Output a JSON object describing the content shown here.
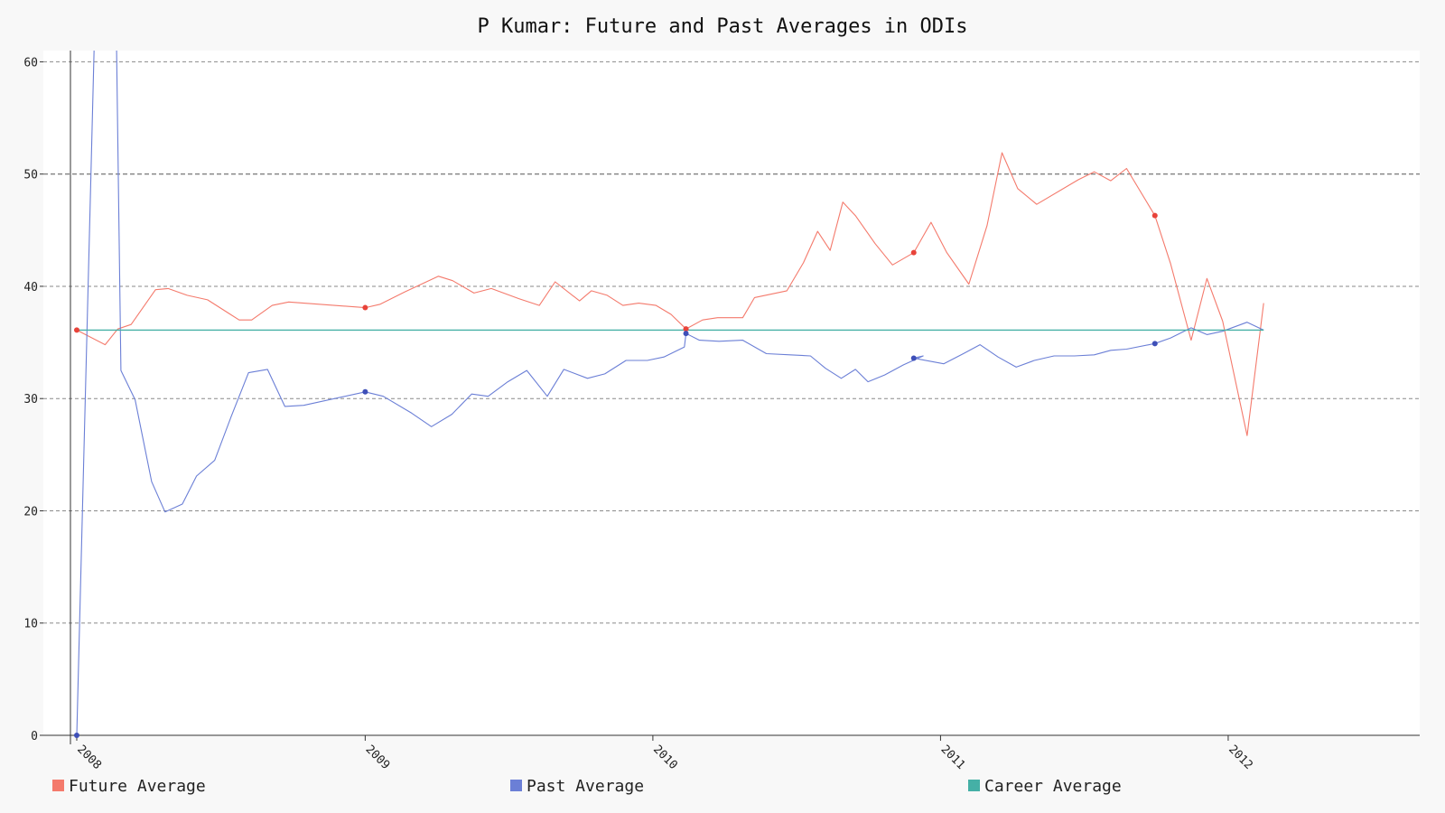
{
  "chart_data": {
    "type": "line",
    "title": "P Kumar: Future and Past Averages in ODIs",
    "xlabel": "",
    "ylabel": "",
    "ylim": [
      0,
      61
    ],
    "yticks": [
      0,
      10,
      20,
      30,
      40,
      50,
      60
    ],
    "xlim": [
      "2007-12-24",
      "2012-08-31"
    ],
    "xticks": [
      {
        "label": "2008",
        "date": "2008-01-01"
      },
      {
        "label": "2009",
        "date": "2009-01-01"
      },
      {
        "label": "2010",
        "date": "2010-01-01"
      },
      {
        "label": "2011",
        "date": "2011-01-01"
      },
      {
        "label": "2012",
        "date": "2012-01-01"
      }
    ],
    "grid": true,
    "legend_position": "bottom",
    "series": [
      {
        "name": "Future Average",
        "color": "#f47a6c",
        "marker_color": "#e8433a",
        "points": [
          [
            "2008-01-01",
            36.1
          ],
          [
            "2008-02-06",
            34.8
          ],
          [
            "2008-02-22",
            36.2
          ],
          [
            "2008-03-10",
            36.6
          ],
          [
            "2008-04-10",
            39.7
          ],
          [
            "2008-04-26",
            39.8
          ],
          [
            "2008-05-20",
            39.2
          ],
          [
            "2008-06-15",
            38.8
          ],
          [
            "2008-07-25",
            37.0
          ],
          [
            "2008-08-10",
            37.0
          ],
          [
            "2008-09-05",
            38.3
          ],
          [
            "2008-09-26",
            38.6
          ],
          [
            "2009-01-01",
            38.1
          ],
          [
            "2009-01-20",
            38.4
          ],
          [
            "2009-02-20",
            39.5
          ],
          [
            "2009-04-04",
            40.9
          ],
          [
            "2009-04-22",
            40.5
          ],
          [
            "2009-05-19",
            39.4
          ],
          [
            "2009-06-10",
            39.8
          ],
          [
            "2009-07-15",
            38.9
          ],
          [
            "2009-08-10",
            38.3
          ],
          [
            "2009-08-30",
            40.4
          ],
          [
            "2009-09-30",
            38.7
          ],
          [
            "2009-10-15",
            39.6
          ],
          [
            "2009-11-04",
            39.2
          ],
          [
            "2009-11-24",
            38.3
          ],
          [
            "2009-12-14",
            38.5
          ],
          [
            "2010-01-05",
            38.3
          ],
          [
            "2010-01-24",
            37.5
          ],
          [
            "2010-02-12",
            36.2
          ],
          [
            "2010-03-05",
            37.0
          ],
          [
            "2010-03-24",
            37.2
          ],
          [
            "2010-04-25",
            37.2
          ],
          [
            "2010-05-10",
            39.0
          ],
          [
            "2010-06-20",
            39.6
          ],
          [
            "2010-07-11",
            42.1
          ],
          [
            "2010-07-29",
            44.9
          ],
          [
            "2010-08-14",
            43.2
          ],
          [
            "2010-08-30",
            47.5
          ],
          [
            "2010-09-15",
            46.3
          ],
          [
            "2010-10-10",
            43.8
          ],
          [
            "2010-11-01",
            41.9
          ],
          [
            "2010-11-28",
            43.0
          ],
          [
            "2010-12-20",
            45.7
          ],
          [
            "2011-01-09",
            43.0
          ],
          [
            "2011-02-06",
            40.2
          ],
          [
            "2011-03-01",
            45.4
          ],
          [
            "2011-03-20",
            51.9
          ],
          [
            "2011-04-09",
            48.7
          ],
          [
            "2011-05-03",
            47.3
          ],
          [
            "2011-06-25",
            49.5
          ],
          [
            "2011-07-15",
            50.2
          ],
          [
            "2011-08-05",
            49.4
          ],
          [
            "2011-08-25",
            50.5
          ],
          [
            "2011-09-30",
            46.3
          ],
          [
            "2011-10-20",
            42.0
          ],
          [
            "2011-11-15",
            35.2
          ],
          [
            "2011-12-05",
            40.7
          ],
          [
            "2011-12-25",
            36.9
          ],
          [
            "2012-01-25",
            26.7
          ],
          [
            "2012-02-15",
            38.5
          ]
        ],
        "markers": [
          [
            "2008-01-01",
            36.1
          ],
          [
            "2009-01-01",
            38.1
          ],
          [
            "2010-02-12",
            36.2
          ],
          [
            "2010-11-28",
            43.0
          ],
          [
            "2011-09-30",
            46.3
          ]
        ]
      },
      {
        "name": "Past Average",
        "color": "#6b7fd6",
        "marker_color": "#3e4fb8",
        "points": [
          [
            "2008-01-01",
            0.0
          ],
          [
            "2008-01-24",
            64.0
          ],
          [
            "2008-02-20",
            64.0
          ],
          [
            "2008-02-26",
            32.5
          ],
          [
            "2008-03-15",
            29.9
          ],
          [
            "2008-04-05",
            22.6
          ],
          [
            "2008-04-22",
            19.9
          ],
          [
            "2008-05-14",
            20.6
          ],
          [
            "2008-06-01",
            23.1
          ],
          [
            "2008-06-24",
            24.5
          ],
          [
            "2008-07-15",
            28.4
          ],
          [
            "2008-08-06",
            32.3
          ],
          [
            "2008-08-30",
            32.6
          ],
          [
            "2008-09-21",
            29.3
          ],
          [
            "2008-10-15",
            29.4
          ],
          [
            "2009-01-01",
            30.6
          ],
          [
            "2009-01-24",
            30.2
          ],
          [
            "2009-03-01",
            28.7
          ],
          [
            "2009-03-26",
            27.5
          ],
          [
            "2009-04-21",
            28.6
          ],
          [
            "2009-05-16",
            30.4
          ],
          [
            "2009-06-06",
            30.2
          ],
          [
            "2009-07-01",
            31.5
          ],
          [
            "2009-07-25",
            32.5
          ],
          [
            "2009-08-20",
            30.2
          ],
          [
            "2009-09-10",
            32.6
          ],
          [
            "2009-10-10",
            31.8
          ],
          [
            "2009-11-01",
            32.2
          ],
          [
            "2009-11-28",
            33.4
          ],
          [
            "2009-12-25",
            33.4
          ],
          [
            "2010-01-15",
            33.7
          ],
          [
            "2010-02-10",
            34.6
          ],
          [
            "2010-02-12",
            35.8
          ],
          [
            "2010-03-01",
            35.2
          ],
          [
            "2010-03-26",
            35.1
          ],
          [
            "2010-04-25",
            35.2
          ],
          [
            "2010-05-25",
            34.0
          ],
          [
            "2010-06-24",
            33.9
          ],
          [
            "2010-07-20",
            33.8
          ],
          [
            "2010-08-08",
            32.7
          ],
          [
            "2010-08-28",
            31.8
          ],
          [
            "2010-09-15",
            32.6
          ],
          [
            "2010-10-01",
            31.5
          ],
          [
            "2010-10-22",
            32.1
          ],
          [
            "2010-11-15",
            33.0
          ],
          [
            "2010-12-10",
            33.8
          ],
          [
            "2010-11-28",
            33.6
          ],
          [
            "2011-01-05",
            33.1
          ],
          [
            "2011-01-30",
            34.0
          ],
          [
            "2011-02-20",
            34.8
          ],
          [
            "2011-03-15",
            33.7
          ],
          [
            "2011-04-07",
            32.8
          ],
          [
            "2011-04-30",
            33.4
          ],
          [
            "2011-05-25",
            33.8
          ],
          [
            "2011-06-20",
            33.8
          ],
          [
            "2011-07-15",
            33.9
          ],
          [
            "2011-08-05",
            34.3
          ],
          [
            "2011-08-25",
            34.4
          ],
          [
            "2011-09-30",
            34.9
          ],
          [
            "2011-10-20",
            35.4
          ],
          [
            "2011-11-15",
            36.3
          ],
          [
            "2011-12-05",
            35.7
          ],
          [
            "2011-12-25",
            36.0
          ],
          [
            "2012-01-25",
            36.8
          ],
          [
            "2012-02-15",
            36.1
          ]
        ],
        "markers": [
          [
            "2008-01-01",
            0.0
          ],
          [
            "2009-01-01",
            30.6
          ],
          [
            "2010-02-12",
            35.8
          ],
          [
            "2010-11-28",
            33.6
          ],
          [
            "2011-09-30",
            34.9
          ]
        ]
      },
      {
        "name": "Career Average",
        "color": "#45b0a6",
        "points": [
          [
            "2008-01-01",
            36.1
          ],
          [
            "2012-02-15",
            36.1
          ]
        ]
      }
    ]
  }
}
